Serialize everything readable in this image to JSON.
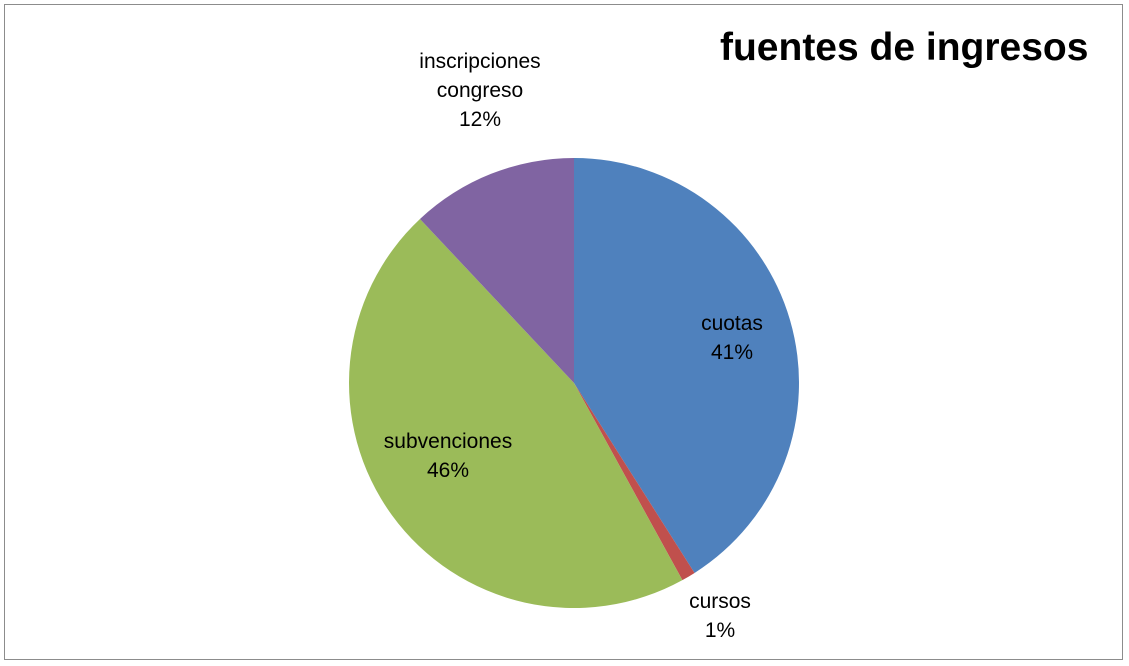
{
  "chart_data": {
    "type": "pie",
    "title": "fuentes de ingresos",
    "start_angle_deg": 0,
    "direction": "clockwise",
    "slices": [
      {
        "label": "cuotas",
        "value": 41,
        "value_label": "41%",
        "color": "#4F81BD"
      },
      {
        "label": "cursos",
        "value": 1,
        "value_label": "1%",
        "color": "#C0504D"
      },
      {
        "label": "subvenciones",
        "value": 46,
        "value_label": "46%",
        "color": "#9BBB59"
      },
      {
        "label": "inscripciones congreso",
        "value": 12,
        "value_label": "12%",
        "color": "#8064A2"
      }
    ],
    "legend": "none",
    "data_labels": "category and percent"
  }
}
